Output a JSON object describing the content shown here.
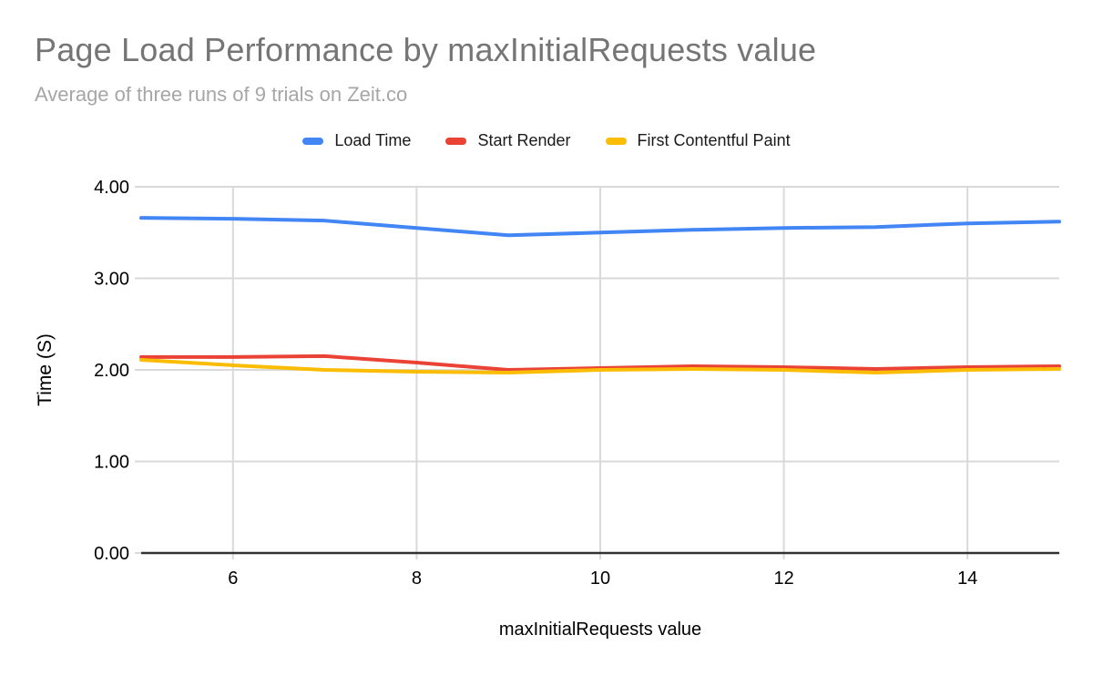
{
  "chart_data": {
    "type": "line",
    "title": "Page Load Performance by maxInitialRequests value",
    "subtitle": "Average of three runs of 9 trials on Zeit.co",
    "xlabel": "maxInitialRequests value",
    "ylabel": "Time (S)",
    "x": [
      5,
      6,
      7,
      8,
      9,
      10,
      11,
      12,
      13,
      14,
      15
    ],
    "series": [
      {
        "name": "Load Time",
        "color": "#4285F4",
        "values": [
          3.66,
          3.65,
          3.63,
          3.55,
          3.47,
          3.5,
          3.53,
          3.55,
          3.56,
          3.6,
          3.62
        ]
      },
      {
        "name": "Start Render",
        "color": "#EA4335",
        "values": [
          2.14,
          2.14,
          2.15,
          2.08,
          2.0,
          2.02,
          2.04,
          2.03,
          2.01,
          2.03,
          2.04
        ]
      },
      {
        "name": "First Contentful Paint",
        "color": "#FBBC04",
        "values": [
          2.11,
          2.05,
          2.0,
          1.98,
          1.97,
          2.0,
          2.01,
          2.0,
          1.97,
          2.0,
          2.01
        ]
      }
    ],
    "xlim": [
      5,
      15
    ],
    "ylim": [
      0,
      4
    ],
    "yticks": {
      "values": [
        0,
        1,
        2,
        3,
        4
      ],
      "labels": [
        "0.00",
        "1.00",
        "2.00",
        "3.00",
        "4.00"
      ]
    },
    "xticks": {
      "values": [
        6,
        8,
        10,
        12,
        14
      ],
      "labels": [
        "6",
        "8",
        "10",
        "12",
        "14"
      ]
    },
    "grid": true,
    "legend_position": "top",
    "styles": {
      "gridline_color": "#d9d9d9",
      "baseline_color": "#333333",
      "tick_label_color": "#000000",
      "title_color": "#757575",
      "subtitle_color": "#a6a6a6",
      "background": "#ffffff"
    }
  }
}
